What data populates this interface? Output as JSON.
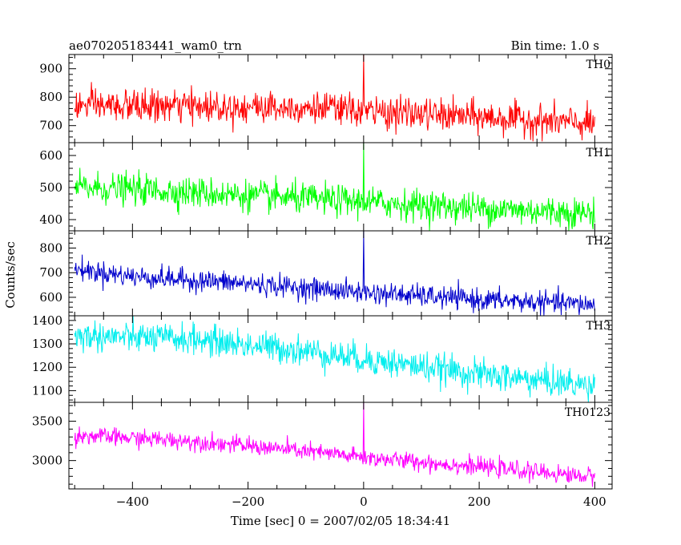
{
  "header": {
    "left_title": "ae070205183441_wam0_trn",
    "right_title": "Bin time: 1.0 s"
  },
  "chart_data": {
    "type": "line",
    "xlabel": "Time [sec] 0 = 2007/02/05 18:34:41",
    "ylabel": "Counts/sec",
    "xlim": [
      -510,
      430
    ],
    "x_ticks": [
      -400,
      -200,
      0,
      200,
      400
    ],
    "x_tick_labels": [
      "−400",
      "−200",
      "0",
      "200",
      "400"
    ],
    "bin_time_s": 1.0,
    "panels": [
      {
        "name": "TH0",
        "color": "#ff0000",
        "ylim": [
          640,
          950
        ],
        "y_ticks": [
          700,
          800,
          900
        ],
        "trend": {
          "x": [
            -500,
            -100,
            0,
            200,
            400
          ],
          "y": [
            770,
            765,
            750,
            730,
            705
          ]
        },
        "noise_sd": 28,
        "spike": {
          "x": 0,
          "y": 950
        }
      },
      {
        "name": "TH1",
        "color": "#00ff00",
        "ylim": [
          365,
          640
        ],
        "y_ticks": [
          400,
          500,
          600
        ],
        "trend": {
          "x": [
            -500,
            -400,
            -200,
            0,
            200,
            400
          ],
          "y": [
            500,
            495,
            475,
            455,
            435,
            420
          ]
        },
        "noise_sd": 24,
        "spike": {
          "x": 0,
          "y": 640
        }
      },
      {
        "name": "TH2",
        "color": "#0000cc",
        "ylim": [
          525,
          870
        ],
        "y_ticks": [
          600,
          700,
          800
        ],
        "trend": {
          "x": [
            -500,
            -400,
            -200,
            0,
            200,
            400
          ],
          "y": [
            715,
            685,
            655,
            620,
            590,
            570
          ]
        },
        "noise_sd": 22,
        "spike": {
          "x": 0,
          "y": 870
        }
      },
      {
        "name": "TH3",
        "color": "#00eeee",
        "ylim": [
          1050,
          1420
        ],
        "y_ticks": [
          1100,
          1200,
          1300,
          1400
        ],
        "trend": {
          "x": [
            -500,
            -300,
            -100,
            0,
            200,
            400
          ],
          "y": [
            1335,
            1320,
            1270,
            1235,
            1170,
            1120
          ]
        },
        "noise_sd": 32,
        "spike": null
      },
      {
        "name": "TH0123",
        "color": "#ff00ff",
        "ylim": [
          2640,
          3740
        ],
        "y_ticks": [
          3000,
          3500
        ],
        "trend": {
          "x": [
            -500,
            -300,
            -100,
            0,
            200,
            400
          ],
          "y": [
            3320,
            3250,
            3120,
            3040,
            2920,
            2790
          ]
        },
        "noise_sd": 55,
        "spike": {
          "x": 0,
          "y": 3740
        }
      }
    ]
  }
}
